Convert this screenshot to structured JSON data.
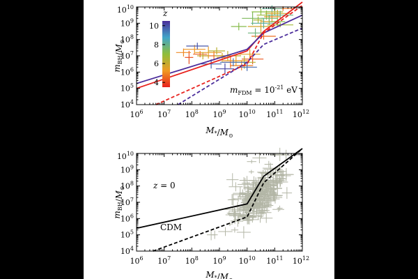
{
  "chart_data": [
    {
      "type": "scatter",
      "panel": "top",
      "xlabel": "M_*/M_⊙",
      "ylabel": "m_BH/M_⊙",
      "xscale": "log",
      "yscale": "log",
      "xlim": [
        1000000.0,
        1000000000000.0
      ],
      "ylim": [
        10000.0,
        10000000000.0
      ],
      "x_ticks": [
        "10^6",
        "10^7",
        "10^8",
        "10^9",
        "10^10",
        "10^11",
        "10^12"
      ],
      "y_ticks": [
        "10^4",
        "10^5",
        "10^6",
        "10^7",
        "10^8",
        "10^9",
        "10^10"
      ],
      "annotation": "m_FDM = 10^-21 eV",
      "colorbar": {
        "title": "z",
        "ticks": [
          "4",
          "6",
          "8",
          "10"
        ],
        "range": [
          3.5,
          10.5
        ],
        "position": "top-left"
      },
      "colors": {
        "z4": "#e8201c",
        "z6": "#f09a24",
        "z8": "#8fbe3a",
        "z10": "#4b2d9b"
      },
      "lines": [
        {
          "style": "solid",
          "color": "#e8201c",
          "points": [
            [
              6,
              5.0
            ],
            [
              10,
              7.3
            ],
            [
              10.6,
              8.5
            ],
            [
              12,
              10.3
            ]
          ]
        },
        {
          "style": "solid",
          "color": "#4b2d9b",
          "points": [
            [
              6,
              5.3
            ],
            [
              10,
              7.4
            ],
            [
              10.6,
              8.4
            ],
            [
              12,
              9.5
            ]
          ]
        },
        {
          "style": "dashed",
          "color": "#e8201c",
          "points": [
            [
              6.7,
              4.0
            ],
            [
              10,
              6.5
            ],
            [
              10.6,
              8.4
            ],
            [
              12,
              10.1
            ]
          ]
        },
        {
          "style": "dashed",
          "color": "#4b2d9b",
          "points": [
            [
              7.5,
              4.0
            ],
            [
              10,
              6.6
            ],
            [
              10.6,
              7.7
            ],
            [
              12,
              8.7
            ]
          ]
        }
      ],
      "points": [
        {
          "x": 7.9,
          "y": 6.9,
          "z": 4.2
        },
        {
          "x": 8.3,
          "y": 7.1,
          "z": 4.4
        },
        {
          "x": 8.8,
          "y": 7.0,
          "z": 4.6
        },
        {
          "x": 9.4,
          "y": 6.6,
          "z": 4.5
        },
        {
          "x": 9.8,
          "y": 6.4,
          "z": 4.8
        },
        {
          "x": 10.2,
          "y": 6.8,
          "z": 4.3
        },
        {
          "x": 10.6,
          "y": 8.2,
          "z": 4.6
        },
        {
          "x": 10.9,
          "y": 9.4,
          "z": 5.0
        },
        {
          "x": 11.3,
          "y": 9.9,
          "z": 4.7
        },
        {
          "x": 8.1,
          "y": 7.4,
          "z": 5.2
        },
        {
          "x": 8.6,
          "y": 7.2,
          "z": 5.4
        },
        {
          "x": 9.1,
          "y": 6.9,
          "z": 5.6
        },
        {
          "x": 9.6,
          "y": 6.7,
          "z": 5.3
        },
        {
          "x": 10.1,
          "y": 7.1,
          "z": 5.5
        },
        {
          "x": 10.5,
          "y": 8.8,
          "z": 5.8
        },
        {
          "x": 10.8,
          "y": 9.1,
          "z": 5.6
        },
        {
          "x": 11.1,
          "y": 9.6,
          "z": 5.9
        },
        {
          "x": 8.4,
          "y": 7.0,
          "z": 6.1
        },
        {
          "x": 8.9,
          "y": 7.3,
          "z": 6.3
        },
        {
          "x": 9.3,
          "y": 7.0,
          "z": 6.2
        },
        {
          "x": 9.9,
          "y": 6.6,
          "z": 6.4
        },
        {
          "x": 10.4,
          "y": 9.2,
          "z": 6.5
        },
        {
          "x": 10.7,
          "y": 9.5,
          "z": 6.8
        },
        {
          "x": 11.0,
          "y": 9.7,
          "z": 6.4
        },
        {
          "x": 11.2,
          "y": 8.9,
          "z": 6.7
        },
        {
          "x": 9.7,
          "y": 8.8,
          "z": 7.2
        },
        {
          "x": 10.2,
          "y": 9.3,
          "z": 7.4
        },
        {
          "x": 10.5,
          "y": 9.7,
          "z": 7.1
        },
        {
          "x": 10.8,
          "y": 9.3,
          "z": 7.6
        },
        {
          "x": 11.1,
          "y": 9.1,
          "z": 7.3
        },
        {
          "x": 10.3,
          "y": 8.4,
          "z": 7.8
        },
        {
          "x": 10.9,
          "y": 9.9,
          "z": 8.1
        },
        {
          "x": 11.2,
          "y": 9.5,
          "z": 7.9
        },
        {
          "x": 10.6,
          "y": 9.0,
          "z": 8.2
        },
        {
          "x": 8.7,
          "y": 6.5,
          "z": 9.8
        },
        {
          "x": 9.2,
          "y": 6.2,
          "z": 10.1
        },
        {
          "x": 9.5,
          "y": 6.6,
          "z": 9.5
        },
        {
          "x": 8.2,
          "y": 7.6,
          "z": 9.9
        },
        {
          "x": 10.0,
          "y": 6.3,
          "z": 9.6
        },
        {
          "x": 7.7,
          "y": 7.2,
          "z": 5.0
        }
      ]
    },
    {
      "type": "scatter",
      "panel": "bottom",
      "xlabel": "M_*/M_⊙",
      "ylabel": "m_BH/M_⊙",
      "xscale": "log",
      "yscale": "log",
      "xlim": [
        1000000.0,
        1000000000000.0
      ],
      "ylim": [
        10000.0,
        10000000000.0
      ],
      "x_ticks": [
        "10^6",
        "10^7",
        "10^8",
        "10^9",
        "10^10",
        "10^11",
        "10^12"
      ],
      "y_ticks": [
        "10^4",
        "10^5",
        "10^6",
        "10^7",
        "10^8",
        "10^9",
        "10^10"
      ],
      "annotation": "z = 0",
      "line_label": "CDM",
      "colors": {
        "points": "#b3b6a6",
        "lines": "#000000"
      },
      "lines": [
        {
          "style": "solid",
          "color": "#000000",
          "points": [
            [
              6,
              5.4
            ],
            [
              10,
              6.9
            ],
            [
              10.6,
              8.6
            ],
            [
              12,
              10.3
            ]
          ]
        },
        {
          "style": "dashed",
          "color": "#000000",
          "points": [
            [
              6.6,
              4.0
            ],
            [
              10,
              6.1
            ],
            [
              10.6,
              8.2
            ],
            [
              12,
              10.3
            ]
          ]
        }
      ],
      "cloud": {
        "center_x": 10.4,
        "center_y": 7.4,
        "spread_x": 0.45,
        "spread_y": 0.9,
        "count": 260,
        "x_range": [
          8.7,
          11.8
        ],
        "y_range": [
          5.0,
          10.2
        ]
      }
    }
  ]
}
